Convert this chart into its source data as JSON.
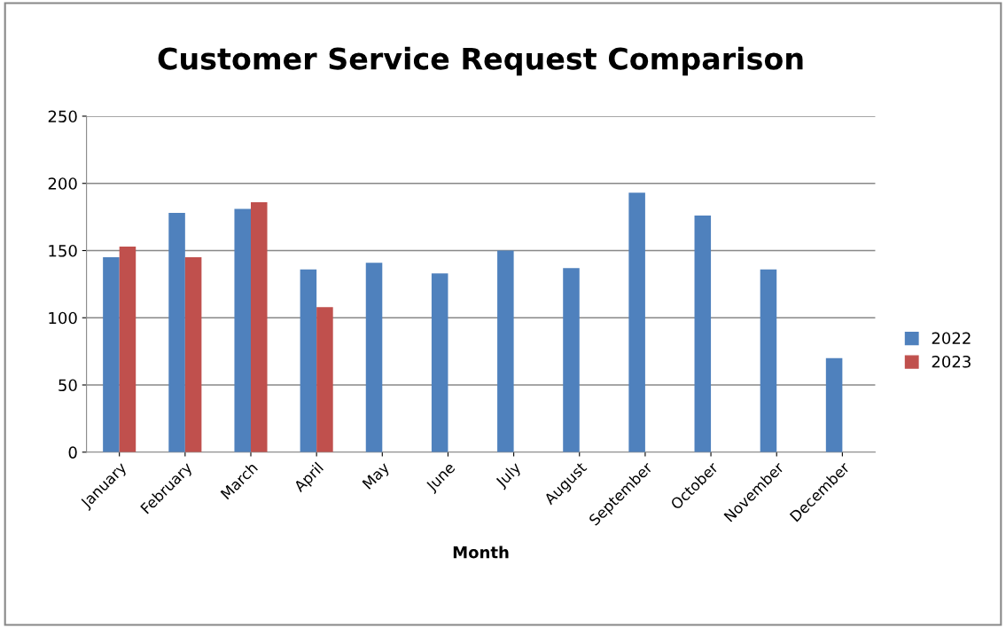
{
  "chart_data": {
    "type": "bar",
    "title": "Customer Service Request Comparison",
    "xlabel": "Month",
    "categories": [
      "January",
      "February",
      "March",
      "April",
      "May",
      "June",
      "July",
      "August",
      "September",
      "October",
      "November",
      "December"
    ],
    "series": [
      {
        "name": "2022",
        "color": "#4f81bd",
        "values": [
          145,
          178,
          181,
          136,
          141,
          133,
          150,
          137,
          193,
          176,
          136,
          70
        ]
      },
      {
        "name": "2023",
        "color": "#c0504d",
        "values": [
          153,
          145,
          186,
          108,
          null,
          null,
          null,
          null,
          null,
          null,
          null,
          null
        ]
      }
    ],
    "ylim": [
      0,
      250
    ],
    "yticks": [
      0,
      50,
      100,
      150,
      200,
      250
    ],
    "grid": "y",
    "legend": "right"
  }
}
